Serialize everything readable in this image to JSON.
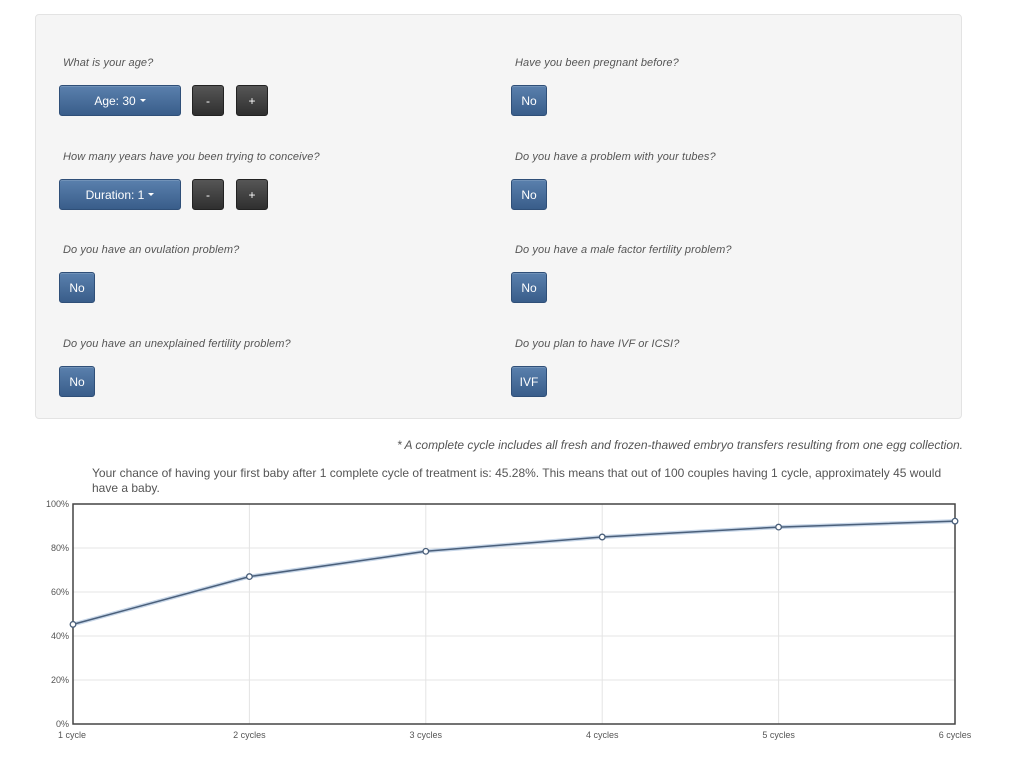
{
  "form": {
    "age": {
      "question": "What is your age?",
      "selector_label": "Age: 30",
      "minus_label": "-",
      "plus_label": "+"
    },
    "duration": {
      "question": "How many years have you been trying to conceive?",
      "selector_label": "Duration: 1",
      "minus_label": "-",
      "plus_label": "+"
    },
    "ovulation": {
      "question": "Do you have an ovulation problem?",
      "answer": "No"
    },
    "unexplained": {
      "question": "Do you have an unexplained fertility problem?",
      "answer": "No"
    },
    "pregnant": {
      "question": "Have you been pregnant before?",
      "answer": "No"
    },
    "tubes": {
      "question": "Do you have a problem with your tubes?",
      "answer": "No"
    },
    "male_factor": {
      "question": "Do you have a male factor fertility problem?",
      "answer": "No"
    },
    "treatment": {
      "question": "Do you plan to have IVF or ICSI?",
      "answer": "IVF"
    }
  },
  "footnote": "* A complete cycle includes all fresh and frozen-thawed embryo transfers resulting from one egg collection.",
  "result_text": "Your chance of having your first baby after 1 complete cycle of treatment is: 45.28%. This means that out of 100 couples having 1 cycle, approximately 45 would have a baby.",
  "colors": {
    "button_blue": "#4a6f9c",
    "button_dark": "#3a3a3a",
    "line": "#4a5f7a",
    "panel_bg": "#f5f5f5"
  },
  "chart_data": {
    "type": "line",
    "title": "",
    "xlabel": "",
    "ylabel": "",
    "categories": [
      "1 cycle",
      "2 cycles",
      "3 cycles",
      "4 cycles",
      "5 cycles",
      "6 cycles"
    ],
    "values": [
      45.28,
      67,
      78.5,
      85,
      89.5,
      92.2
    ],
    "ylim": [
      0,
      100
    ],
    "yticks": [
      "0%",
      "20%",
      "40%",
      "60%",
      "80%",
      "100%"
    ],
    "ytick_values": [
      0,
      20,
      40,
      60,
      80,
      100
    ],
    "grid": true
  }
}
